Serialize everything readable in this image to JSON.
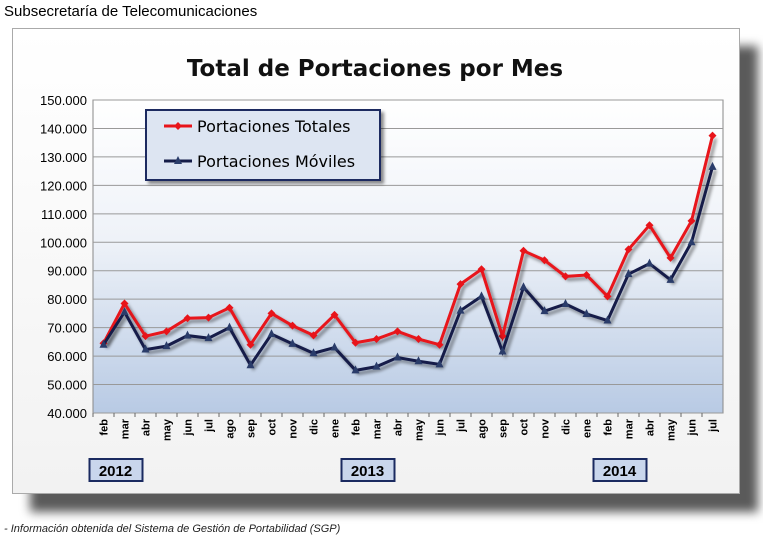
{
  "header": {
    "title": "Subsecretaría de Telecomunicaciones"
  },
  "footer": {
    "note": "- Información obtenida del Sistema de Gestión de Portabilidad (SGP)"
  },
  "chart_data": {
    "type": "line",
    "title": "Total de Portaciones por Mes",
    "xlabel": "",
    "ylabel": "",
    "ylim": [
      40000,
      150000
    ],
    "yticks": [
      "40.000",
      "50.000",
      "60.000",
      "70.000",
      "80.000",
      "90.000",
      "100.000",
      "110.000",
      "120.000",
      "130.000",
      "140.000",
      "150.000"
    ],
    "categories": [
      "feb",
      "mar",
      "abr",
      "may",
      "jun",
      "jul",
      "ago",
      "sep",
      "oct",
      "nov",
      "dic",
      "ene",
      "feb",
      "mar",
      "abr",
      "may",
      "jun",
      "jul",
      "ago",
      "sep",
      "oct",
      "nov",
      "dic",
      "ene",
      "feb",
      "mar",
      "abr",
      "may",
      "jun",
      "jul"
    ],
    "years": [
      {
        "label": "2012",
        "index": 0.5
      },
      {
        "label": "2013",
        "index": 12.5
      },
      {
        "label": "2014",
        "index": 24.5
      }
    ],
    "legend_position": "top-left",
    "series": [
      {
        "name": "Portaciones Totales",
        "color": "#e8141a",
        "marker": "diamond",
        "values": [
          64500,
          78500,
          67000,
          68700,
          73300,
          73500,
          77000,
          64000,
          75000,
          70700,
          67300,
          74500,
          64700,
          66000,
          68700,
          66000,
          64000,
          85300,
          90500,
          67000,
          97000,
          93700,
          88000,
          88500,
          81000,
          97500,
          106000,
          94500,
          107500,
          137500
        ]
      },
      {
        "name": "Portaciones Móviles",
        "color": "#141c48",
        "marker": "triangle",
        "values": [
          64000,
          75500,
          62300,
          63500,
          67200,
          66300,
          70000,
          56800,
          67700,
          64300,
          61000,
          63000,
          55000,
          56300,
          59500,
          58200,
          57100,
          76000,
          81000,
          61600,
          84200,
          75800,
          78300,
          74800,
          72500,
          88800,
          92500,
          86800,
          100000,
          126500
        ]
      }
    ]
  }
}
